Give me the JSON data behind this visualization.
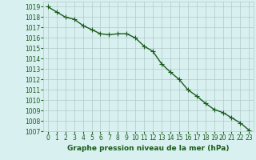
{
  "x": [
    0,
    1,
    2,
    3,
    4,
    5,
    6,
    7,
    8,
    9,
    10,
    11,
    12,
    13,
    14,
    15,
    16,
    17,
    18,
    19,
    20,
    21,
    22,
    23
  ],
  "y": [
    1019.0,
    1018.5,
    1018.0,
    1017.8,
    1017.2,
    1016.8,
    1016.4,
    1016.3,
    1016.4,
    1016.4,
    1016.0,
    1015.2,
    1014.7,
    1013.5,
    1012.7,
    1012.0,
    1011.0,
    1010.4,
    1009.7,
    1009.1,
    1008.8,
    1008.3,
    1007.8,
    1007.1
  ],
  "line_color": "#1a5c1a",
  "marker": "+",
  "marker_size": 4,
  "marker_color": "#1a5c1a",
  "bg_color": "#d8f0f0",
  "grid_color": "#b0c8c8",
  "title": "Graphe pression niveau de la mer (hPa)",
  "ylim": [
    1007,
    1019.5
  ],
  "xlim": [
    -0.5,
    23.5
  ],
  "ytick_values": [
    1007,
    1008,
    1009,
    1010,
    1011,
    1012,
    1013,
    1014,
    1015,
    1016,
    1017,
    1018,
    1019
  ],
  "xtick_values": [
    0,
    1,
    2,
    3,
    4,
    5,
    6,
    7,
    8,
    9,
    10,
    11,
    12,
    13,
    14,
    15,
    16,
    17,
    18,
    19,
    20,
    21,
    22,
    23
  ],
  "tick_fontsize": 5.5,
  "title_fontsize": 6.5,
  "line_width": 1.0
}
